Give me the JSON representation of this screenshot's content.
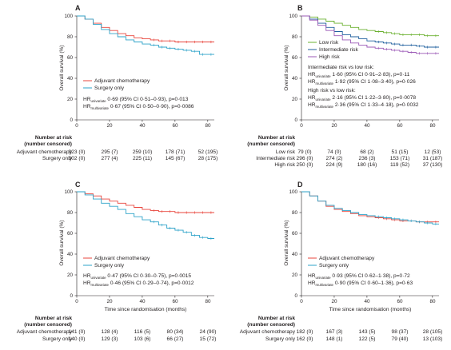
{
  "colors": {
    "adjuvant": "#e8453c",
    "surgery": "#2ea3c9",
    "low": "#6ab02f",
    "intermediate": "#1f5f9e",
    "high": "#9b59b6"
  },
  "common": {
    "ylabel": "Overall survival (%)",
    "xlabel": "Time since randomisation (months)",
    "risk_title_1": "Number at risk",
    "risk_title_2": "(number censored)",
    "xticks": [
      "0",
      "20",
      "40",
      "60",
      "80"
    ],
    "yticks": [
      "0",
      "20",
      "40",
      "60",
      "80",
      "100"
    ]
  },
  "panels": [
    {
      "letter": "A",
      "legend": [
        "Adjuvant chemotherapy",
        "Surgery only"
      ],
      "hr": [
        {
          "main": "HR",
          "sub": "univariate",
          "text": " 0·69 (95% CI 0·51–0·93), p=0·013"
        },
        {
          "main": "HR",
          "sub": "multivariate",
          "text": " 0·67 (95% CI 0·50–0·90), p=0·0086"
        }
      ],
      "risk_rows": [
        {
          "label": "Adjuvant chemotherapy",
          "values": [
            "323 (0)",
            "295 (7)",
            "259 (10)",
            "178 (71)",
            "52 (195)"
          ]
        },
        {
          "label": "Surgery only",
          "values": [
            "302 (0)",
            "277 (4)",
            "225 (11)",
            "145 (67)",
            "28 (175)"
          ]
        }
      ]
    },
    {
      "letter": "B",
      "legend": [
        "Low risk",
        "Intermediate risk",
        "High risk"
      ],
      "hr": [
        {
          "main": "Intermediate risk vs low risk:",
          "sub": "",
          "text": ""
        },
        {
          "main": "HR",
          "sub": "univariate",
          "text": " 1·60 (95% CI 0·91–2·83), p=0·11"
        },
        {
          "main": "HR",
          "sub": "multivariate",
          "text": " 1·92 (95% CI 1·08–3·40), p=0·026"
        },
        {
          "main": "High risk vs low risk:",
          "sub": "",
          "text": ""
        },
        {
          "main": "HR",
          "sub": "univariate",
          "text": " 2·16 (95% CI 1·22–3·80), p=0·0078"
        },
        {
          "main": "HR",
          "sub": "multivariate",
          "text": " 2·36 (95% CI 1·33–4·18), p=0·0032"
        }
      ],
      "risk_rows": [
        {
          "label": "Low risk",
          "values": [
            "79 (0)",
            "74 (0)",
            "68 (2)",
            "51 (15)",
            "12 (53)"
          ]
        },
        {
          "label": "Intermediate risk",
          "values": [
            "296 (0)",
            "274 (2)",
            "236 (3)",
            "153 (71)",
            "31 (187)"
          ]
        },
        {
          "label": "High risk",
          "values": [
            "250 (0)",
            "224 (9)",
            "180 (16)",
            "119 (52)",
            "37 (130)"
          ]
        }
      ]
    },
    {
      "letter": "C",
      "legend": [
        "Adjuvant chemotherapy",
        "Surgery only"
      ],
      "hr": [
        {
          "main": "HR",
          "sub": "univariate",
          "text": " 0·47 (95% CI 0·30–0·75), p=0·0015"
        },
        {
          "main": "HR",
          "sub": "multivariate",
          "text": " 0·46 (95% CI 0·29–0·74), p=0·0012"
        }
      ],
      "risk_rows": [
        {
          "label": "Adjuvant chemotherapy",
          "values": [
            "141 (0)",
            "128 (4)",
            "116 (5)",
            "80 (34)",
            "24 (90)"
          ]
        },
        {
          "label": "Surgery only",
          "values": [
            "140 (0)",
            "129 (3)",
            "103 (6)",
            "66 (27)",
            "15 (72)"
          ]
        }
      ]
    },
    {
      "letter": "D",
      "legend": [
        "Adjuvant chemotherapy",
        "Surgery only"
      ],
      "hr": [
        {
          "main": "HR",
          "sub": "univariate",
          "text": " 0·93 (95% CI 0·62–1·38), p=0·72"
        },
        {
          "main": "HR",
          "sub": "multivariate",
          "text": " 0·90 (95% CI 0·60–1·36), p=0·63"
        }
      ],
      "risk_rows": [
        {
          "label": "Adjuvant chemotherapy",
          "values": [
            "182 (0)",
            "167 (3)",
            "143 (5)",
            "98 (37)",
            "28 (105)"
          ]
        },
        {
          "label": "Surgery only",
          "values": [
            "162 (0)",
            "148 (1)",
            "122 (5)",
            "79 (40)",
            "13 (103)"
          ]
        }
      ]
    }
  ],
  "chart_data": [
    {
      "type": "line",
      "panel": "A",
      "ylabel": "Overall survival (%)",
      "xlim": [
        0,
        84
      ],
      "ylim": [
        0,
        100
      ],
      "series": [
        {
          "name": "Adjuvant chemotherapy",
          "color": "#e8453c",
          "x": [
            0,
            5,
            10,
            15,
            20,
            25,
            30,
            35,
            40,
            45,
            50,
            55,
            60,
            65,
            70,
            75,
            80,
            84
          ],
          "y": [
            100,
            97,
            93,
            89,
            86,
            83,
            81,
            79,
            78,
            77,
            76,
            76,
            75,
            75,
            75,
            75,
            75,
            75
          ]
        },
        {
          "name": "Surgery only",
          "color": "#2ea3c9",
          "x": [
            0,
            5,
            10,
            15,
            20,
            25,
            30,
            35,
            40,
            45,
            50,
            55,
            60,
            65,
            70,
            75,
            80,
            84
          ],
          "y": [
            100,
            97,
            92,
            87,
            83,
            80,
            77,
            75,
            73,
            72,
            70,
            69,
            68,
            67,
            66,
            63,
            63,
            63
          ]
        }
      ]
    },
    {
      "type": "line",
      "panel": "B",
      "ylabel": "Overall survival (%)",
      "xlim": [
        0,
        84
      ],
      "ylim": [
        0,
        100
      ],
      "series": [
        {
          "name": "Low risk",
          "color": "#6ab02f",
          "x": [
            0,
            5,
            10,
            15,
            20,
            25,
            30,
            35,
            40,
            45,
            50,
            55,
            60,
            65,
            70,
            75,
            80,
            84
          ],
          "y": [
            100,
            99,
            97,
            95,
            93,
            91,
            89,
            87,
            86,
            85,
            84,
            83,
            82,
            82,
            82,
            81,
            81,
            81
          ]
        },
        {
          "name": "Intermediate risk",
          "color": "#1f5f9e",
          "x": [
            0,
            5,
            10,
            15,
            20,
            25,
            30,
            35,
            40,
            45,
            50,
            55,
            60,
            65,
            70,
            75,
            80,
            84
          ],
          "y": [
            100,
            97,
            93,
            89,
            85,
            82,
            80,
            78,
            76,
            75,
            74,
            73,
            72,
            72,
            71,
            70,
            70,
            70
          ]
        },
        {
          "name": "High risk",
          "color": "#9b59b6",
          "x": [
            0,
            5,
            10,
            15,
            20,
            25,
            30,
            35,
            40,
            45,
            50,
            55,
            60,
            65,
            70,
            75,
            80,
            84
          ],
          "y": [
            100,
            96,
            91,
            86,
            81,
            77,
            74,
            72,
            70,
            69,
            68,
            67,
            66,
            65,
            64,
            64,
            64,
            64
          ]
        }
      ]
    },
    {
      "type": "line",
      "panel": "C",
      "ylabel": "Overall survival (%)",
      "xlabel": "Time since randomisation (months)",
      "xlim": [
        0,
        84
      ],
      "ylim": [
        0,
        100
      ],
      "series": [
        {
          "name": "Adjuvant chemotherapy",
          "color": "#e8453c",
          "x": [
            0,
            5,
            10,
            15,
            20,
            25,
            30,
            35,
            40,
            45,
            50,
            55,
            60,
            65,
            70,
            75,
            80,
            84
          ],
          "y": [
            100,
            98,
            96,
            93,
            91,
            89,
            87,
            85,
            83,
            82,
            81,
            81,
            80,
            80,
            80,
            80,
            80,
            80
          ]
        },
        {
          "name": "Surgery only",
          "color": "#2ea3c9",
          "x": [
            0,
            5,
            10,
            15,
            20,
            25,
            30,
            35,
            40,
            45,
            50,
            55,
            60,
            65,
            70,
            75,
            80,
            84
          ],
          "y": [
            100,
            97,
            93,
            89,
            86,
            83,
            79,
            76,
            73,
            71,
            68,
            65,
            63,
            61,
            58,
            56,
            55,
            55
          ]
        }
      ]
    },
    {
      "type": "line",
      "panel": "D",
      "ylabel": "Overall survival (%)",
      "xlabel": "Time since randomisation (months)",
      "xlim": [
        0,
        84
      ],
      "ylim": [
        0,
        100
      ],
      "series": [
        {
          "name": "Adjuvant chemotherapy",
          "color": "#e8453c",
          "x": [
            0,
            5,
            10,
            15,
            20,
            25,
            30,
            35,
            40,
            45,
            50,
            55,
            60,
            65,
            70,
            75,
            80,
            84
          ],
          "y": [
            100,
            96,
            91,
            86,
            83,
            81,
            79,
            77,
            76,
            75,
            74,
            73,
            72,
            72,
            71,
            71,
            71,
            71
          ]
        },
        {
          "name": "Surgery only",
          "color": "#2ea3c9",
          "x": [
            0,
            5,
            10,
            15,
            20,
            25,
            30,
            35,
            40,
            45,
            50,
            55,
            60,
            65,
            70,
            75,
            80,
            84
          ],
          "y": [
            100,
            96,
            91,
            87,
            84,
            82,
            80,
            78,
            77,
            76,
            75,
            74,
            73,
            72,
            71,
            70,
            69,
            69
          ]
        }
      ]
    }
  ]
}
